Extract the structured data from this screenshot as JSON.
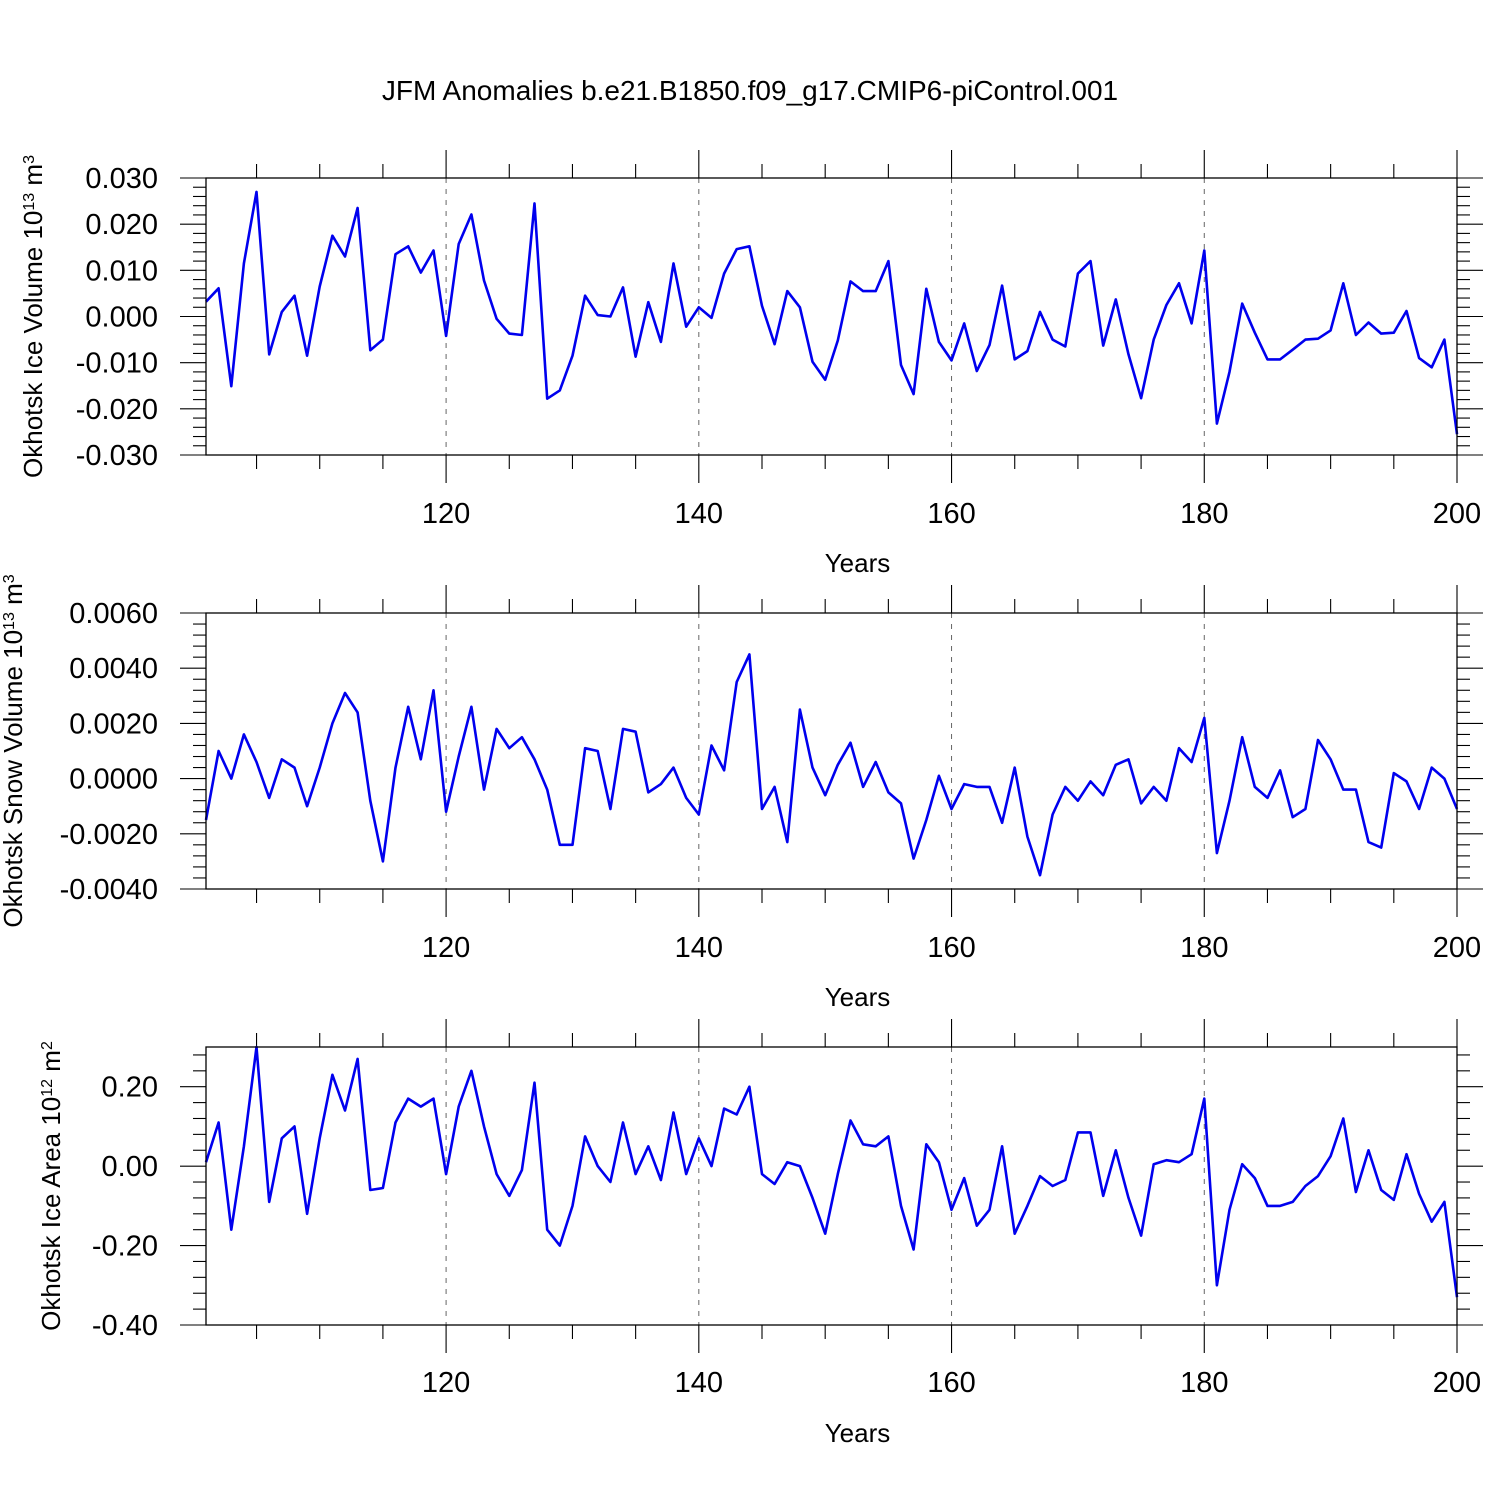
{
  "figure": {
    "title": "JFM Anomalies b.e21.B1850.f09_g17.CMIP6-piControl.001"
  },
  "chart_data": [
    {
      "type": "line",
      "title": "",
      "xlabel": "Years",
      "ylabel": "Okhotsk Ice Volume 10",
      "ylabel_exp": "13",
      "ylabel_unit": " m",
      "ylabel_unit_exp": "3",
      "xlim": [
        101,
        200
      ],
      "ylim": [
        -0.03,
        0.03
      ],
      "xticks": [
        120,
        140,
        160,
        180,
        200
      ],
      "xtick_labels": [
        "120",
        "140",
        "160",
        "180",
        "200"
      ],
      "yticks": [
        -0.03,
        -0.02,
        -0.01,
        0.0,
        0.01,
        0.02,
        0.03
      ],
      "ytick_labels": [
        "-0.030",
        "-0.020",
        "-0.010",
        "0.000",
        "0.010",
        "0.020",
        "0.030"
      ],
      "grid": "dashed vertical at major x ticks",
      "series": [
        {
          "name": "Okhotsk Ice Volume",
          "color": "#0000ee",
          "x_start": 101,
          "values": [
            0.0032,
            0.0061,
            -0.0151,
            0.0115,
            0.027,
            -0.0082,
            0.001,
            0.0045,
            -0.0085,
            0.0065,
            0.0175,
            0.013,
            0.0235,
            -0.0073,
            -0.005,
            0.0135,
            0.0152,
            0.0095,
            0.0143,
            -0.0042,
            0.0157,
            0.0221,
            0.0078,
            -0.0005,
            -0.0037,
            -0.004,
            0.0245,
            -0.0178,
            -0.016,
            -0.0085,
            0.0045,
            0.0003,
            0.0,
            0.0063,
            -0.0087,
            0.0031,
            -0.0055,
            0.0115,
            -0.0022,
            0.002,
            -0.0003,
            0.0093,
            0.0146,
            0.0152,
            0.0023,
            -0.006,
            0.0055,
            0.002,
            -0.0098,
            -0.0137,
            -0.0052,
            0.0076,
            0.0055,
            0.0055,
            0.012,
            -0.0105,
            -0.0168,
            0.006,
            -0.0055,
            -0.0095,
            -0.0015,
            -0.0118,
            -0.0062,
            0.0067,
            -0.0093,
            -0.0075,
            0.001,
            -0.005,
            -0.0065,
            0.0093,
            0.012,
            -0.0063,
            0.0037,
            -0.0082,
            -0.0177,
            -0.005,
            0.0025,
            0.0072,
            -0.0015,
            0.0143,
            -0.0232,
            -0.012,
            0.0028,
            -0.0035,
            -0.0093,
            -0.0093,
            -0.0072,
            -0.005,
            -0.0048,
            -0.003,
            0.0072,
            -0.004,
            -0.0013,
            -0.0037,
            -0.0035,
            0.0012,
            -0.009,
            -0.011,
            -0.005,
            -0.0255
          ]
        }
      ]
    },
    {
      "type": "line",
      "title": "",
      "xlabel": "Years",
      "ylabel": "Okhotsk Snow Volume 10",
      "ylabel_exp": "13",
      "ylabel_unit": " m",
      "ylabel_unit_exp": "3",
      "xlim": [
        101,
        200
      ],
      "ylim": [
        -0.004,
        0.006
      ],
      "xticks": [
        120,
        140,
        160,
        180,
        200
      ],
      "xtick_labels": [
        "120",
        "140",
        "160",
        "180",
        "200"
      ],
      "yticks": [
        -0.004,
        -0.002,
        0.0,
        0.002,
        0.004,
        0.006
      ],
      "ytick_labels": [
        "-0.0040",
        "-0.0020",
        "0.0000",
        "0.0020",
        "0.0040",
        "0.0060"
      ],
      "grid": "dashed vertical at major x ticks",
      "series": [
        {
          "name": "Okhotsk Snow Volume",
          "color": "#0000ee",
          "x_start": 101,
          "values": [
            -0.0015,
            0.001,
            0.0,
            0.0016,
            0.0006,
            -0.0007,
            0.0007,
            0.0004,
            -0.001,
            0.0004,
            0.002,
            0.0031,
            0.0024,
            -0.0008,
            -0.003,
            0.0004,
            0.0026,
            0.0007,
            0.0032,
            -0.0012,
            0.0008,
            0.0026,
            -0.0004,
            0.0018,
            0.0011,
            0.0015,
            0.0007,
            -0.0004,
            -0.0024,
            -0.0024,
            0.0011,
            0.001,
            -0.0011,
            0.0018,
            0.0017,
            -0.0005,
            -0.0002,
            0.0004,
            -0.0007,
            -0.0013,
            0.0012,
            0.0003,
            0.0035,
            0.0045,
            -0.0011,
            -0.0003,
            -0.0023,
            0.0025,
            0.0004,
            -0.0006,
            0.0005,
            0.0013,
            -0.0003,
            0.0006,
            -0.0005,
            -0.0009,
            -0.0029,
            -0.0015,
            0.0001,
            -0.0011,
            -0.0002,
            -0.0003,
            -0.0003,
            -0.0016,
            0.0004,
            -0.0021,
            -0.0035,
            -0.0013,
            -0.0003,
            -0.0008,
            -0.0001,
            -0.0006,
            0.0005,
            0.0007,
            -0.0009,
            -0.0003,
            -0.0008,
            0.0011,
            0.0006,
            0.0022,
            -0.0027,
            -0.0008,
            0.0015,
            -0.0003,
            -0.0007,
            0.0003,
            -0.0014,
            -0.0011,
            0.0014,
            0.0007,
            -0.0004,
            -0.0004,
            -0.0023,
            -0.0025,
            0.0002,
            -0.0001,
            -0.0011,
            0.0004,
            0.0,
            -0.0011
          ]
        }
      ]
    },
    {
      "type": "line",
      "title": "",
      "xlabel": "Years",
      "ylabel": "Okhotsk Ice Area 10",
      "ylabel_exp": "12",
      "ylabel_unit": " m",
      "ylabel_unit_exp": "2",
      "xlim": [
        101,
        200
      ],
      "ylim": [
        -0.4,
        0.3
      ],
      "xticks": [
        120,
        140,
        160,
        180,
        200
      ],
      "xtick_labels": [
        "120",
        "140",
        "160",
        "180",
        "200"
      ],
      "yticks": [
        -0.4,
        -0.2,
        0.0,
        0.2
      ],
      "ytick_labels": [
        "-0.40",
        "-0.20",
        "0.00",
        "0.20"
      ],
      "grid": "dashed vertical at major x ticks",
      "series": [
        {
          "name": "Okhotsk Ice Area",
          "color": "#0000ee",
          "x_start": 101,
          "values": [
            0.01,
            0.11,
            -0.16,
            0.05,
            0.3,
            -0.09,
            0.07,
            0.1,
            -0.12,
            0.07,
            0.23,
            0.14,
            0.27,
            -0.06,
            -0.055,
            0.11,
            0.17,
            0.15,
            0.17,
            -0.02,
            0.15,
            0.24,
            0.1,
            -0.02,
            -0.075,
            -0.01,
            0.21,
            -0.16,
            -0.2,
            -0.1,
            0.075,
            0.0,
            -0.04,
            0.11,
            -0.02,
            0.05,
            -0.035,
            0.135,
            -0.02,
            0.07,
            0.0,
            0.145,
            0.13,
            0.2,
            -0.02,
            -0.045,
            0.01,
            0.0,
            -0.08,
            -0.17,
            -0.02,
            0.115,
            0.055,
            0.05,
            0.075,
            -0.1,
            -0.21,
            0.055,
            0.01,
            -0.11,
            -0.03,
            -0.15,
            -0.11,
            0.05,
            -0.17,
            -0.1,
            -0.025,
            -0.05,
            -0.035,
            0.085,
            0.085,
            -0.075,
            0.04,
            -0.08,
            -0.175,
            0.005,
            0.015,
            0.01,
            0.03,
            0.17,
            -0.3,
            -0.11,
            0.005,
            -0.03,
            -0.1,
            -0.1,
            -0.09,
            -0.05,
            -0.025,
            0.025,
            0.12,
            -0.065,
            0.04,
            -0.06,
            -0.085,
            0.03,
            -0.07,
            -0.14,
            -0.09,
            -0.33
          ]
        }
      ]
    }
  ]
}
